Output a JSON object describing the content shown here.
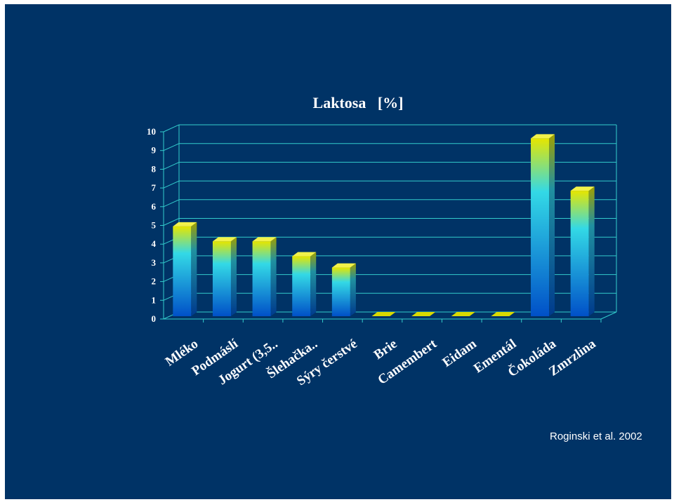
{
  "chart_data": {
    "type": "bar",
    "title": "Laktosa   [%]",
    "categories": [
      "Mléko",
      "Podmáslí",
      "Jogurt (3,5..",
      "Šlehačka..",
      "Sýry čerstvé",
      "Brie",
      "Camembert",
      "Eidam",
      "Ementál",
      "Čokoláda",
      "Zmrzlina"
    ],
    "values": [
      4.8,
      4.0,
      4.0,
      3.2,
      2.6,
      0.0,
      0.0,
      0.0,
      0.0,
      9.5,
      6.7
    ],
    "ylim": [
      0,
      10
    ],
    "yticks": [
      "0",
      "1",
      "2",
      "3",
      "4",
      "5",
      "6",
      "7",
      "8",
      "9",
      "10"
    ],
    "xlabel": "",
    "ylabel": "",
    "grid": true,
    "legend": "none",
    "colors": {
      "background": "#003366",
      "gridline": "#33cccc",
      "bar_top": "#e8e800",
      "bar_mid": "#33d6e0",
      "bar_bottom": "#0055cc"
    }
  },
  "source": "Roginski et al. 2002"
}
